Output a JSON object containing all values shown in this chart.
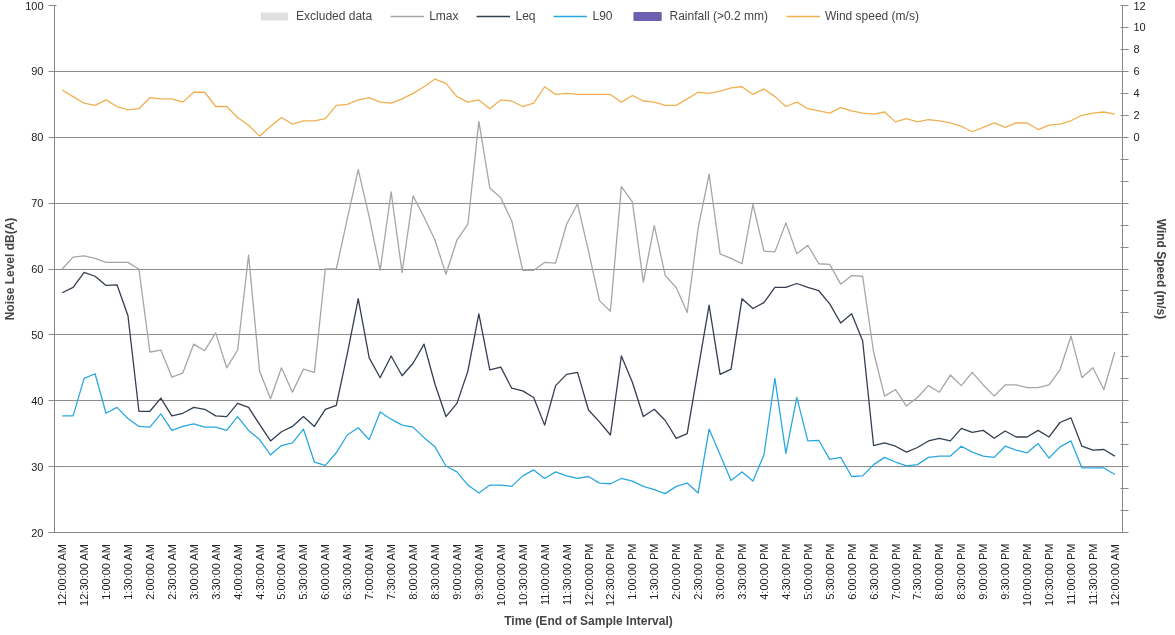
{
  "chart_data": {
    "type": "line",
    "xlabel": "Time (End of Sample Interval)",
    "ylabel": "Noise Level dB(A)",
    "y2label": "Wind Speed (m/s)",
    "categories": [
      "12:00:00 AM",
      null,
      "12:30:00 AM",
      null,
      "1:00:00 AM",
      null,
      "1:30:00 AM",
      null,
      "2:00:00 AM",
      null,
      "2:30:00 AM",
      null,
      "3:00:00 AM",
      null,
      "3:30:00 AM",
      null,
      "4:00:00 AM",
      null,
      "4:30:00 AM",
      null,
      "5:00:00 AM",
      null,
      "5:30:00 AM",
      null,
      "6:00:00 AM",
      null,
      "6:30:00 AM",
      null,
      "7:00:00 AM",
      null,
      "7:30:00 AM",
      null,
      "8:00:00 AM",
      null,
      "8:30:00 AM",
      null,
      "9:00:00 AM",
      null,
      "9:30:00 AM",
      null,
      "10:00:00 AM",
      null,
      "10:30:00 AM",
      null,
      "11:00:00 AM",
      null,
      "11:30:00 AM",
      null,
      "12:00:00 PM",
      null,
      "12:30:00 PM",
      null,
      "1:00:00 PM",
      null,
      "1:30:00 PM",
      null,
      "2:00:00 PM",
      null,
      "2:30:00 PM",
      null,
      "3:00:00 PM",
      null,
      "3:30:00 PM",
      null,
      "4:00:00 PM",
      null,
      "4:30:00 PM",
      null,
      "5:00:00 PM",
      null,
      "5:30:00 PM",
      null,
      "6:00:00 PM",
      null,
      "6:30:00 PM",
      null,
      "7:00:00 PM",
      null,
      "7:30:00 PM",
      null,
      "8:00:00 PM",
      null,
      "8:30:00 PM",
      null,
      "9:00:00 PM",
      null,
      "9:30:00 PM",
      null,
      "10:00:00 PM",
      null,
      "10:30:00 PM",
      null,
      "11:00:00 PM",
      null,
      "11:30:00 PM",
      null,
      "12:00:00 AM"
    ],
    "ylim": [
      20,
      100
    ],
    "yticks": [
      20,
      30,
      40,
      50,
      60,
      70,
      80,
      90,
      100
    ],
    "y2lim": [
      -36,
      12
    ],
    "y2ticks": [
      {
        "value": -36,
        "label": null
      },
      {
        "value": -34,
        "label": null
      },
      {
        "value": -32,
        "label": null
      },
      {
        "value": -30,
        "label": null
      },
      {
        "value": -28,
        "label": null
      },
      {
        "value": -26,
        "label": null
      },
      {
        "value": -24,
        "label": null
      },
      {
        "value": -22,
        "label": null
      },
      {
        "value": -20,
        "label": null
      },
      {
        "value": -18,
        "label": null
      },
      {
        "value": -16,
        "label": null
      },
      {
        "value": -14,
        "label": null
      },
      {
        "value": -12,
        "label": null
      },
      {
        "value": -10,
        "label": null
      },
      {
        "value": -8,
        "label": null
      },
      {
        "value": -6,
        "label": null
      },
      {
        "value": -4,
        "label": null
      },
      {
        "value": -2,
        "label": null
      },
      0,
      2,
      4,
      6,
      8,
      10,
      12
    ],
    "grid": "y",
    "legend": "top",
    "marker": "none",
    "line_style": "solid",
    "series": [
      {
        "name": "Excluded data",
        "type": "area",
        "color": "#e0e0e0",
        "values": [
          null,
          null,
          null,
          null,
          null,
          null,
          null,
          null,
          null,
          null,
          null,
          null,
          null,
          null,
          null,
          null,
          null,
          null,
          null,
          null,
          null,
          null,
          null,
          null,
          null,
          null,
          null,
          null,
          null,
          null,
          null,
          null,
          null,
          null,
          null,
          null,
          null,
          null,
          null,
          null,
          null,
          null,
          null,
          null,
          null,
          null,
          null,
          null,
          null,
          null,
          null,
          null,
          null,
          null,
          null,
          null,
          null,
          null,
          null,
          null,
          null,
          null,
          null,
          null,
          null,
          null,
          null,
          null,
          null,
          null,
          null,
          null,
          null,
          null,
          null,
          null,
          null,
          null,
          null,
          null,
          null,
          null,
          null,
          null,
          null,
          null,
          null,
          null,
          null,
          null,
          null,
          null,
          null,
          null,
          null,
          null,
          null
        ]
      },
      {
        "name": "Lmax",
        "color": "#a6a6a6",
        "values": [
          60,
          61.8,
          62,
          61.6,
          61,
          61,
          61,
          60,
          47.4,
          47.7,
          43.6,
          44.2,
          48.6,
          47.6,
          50.3,
          45,
          47.7,
          62.1,
          44.5,
          40.3,
          45,
          41.3,
          44.8,
          44.3,
          60,
          60,
          67.6,
          75.1,
          67.9,
          59.8,
          71.7,
          59.5,
          71.1,
          67.9,
          64.4,
          59.2,
          64.4,
          66.8,
          82.4,
          72.3,
          70.8,
          67.3,
          59.8,
          59.8,
          61,
          60.9,
          66.8,
          69.9,
          62.7,
          55.2,
          53.6,
          72.5,
          70.2,
          58,
          66.6,
          59,
          57.2,
          53.4,
          66.2,
          74.4,
          62.3,
          61.6,
          60.8,
          69.8,
          62.7,
          62.6,
          67,
          62.3,
          63.6,
          60.8,
          60.7,
          57.7,
          59,
          58.9,
          47.4,
          40.7,
          41.7,
          39.2,
          40.5,
          42.3,
          41.3,
          43.9,
          42.3,
          44.3,
          42.4,
          40.7,
          42.4,
          42.4,
          42,
          42,
          42.4,
          44.7,
          49.8,
          43.5,
          45,
          41.7,
          47.4
        ]
      },
      {
        "name": "Leq",
        "color": "#333f50",
        "values": [
          56.4,
          57.2,
          59.5,
          58.9,
          57.5,
          57.6,
          52.9,
          38.4,
          38.4,
          40.4,
          37.7,
          38.1,
          39,
          38.7,
          37.7,
          37.6,
          39.6,
          39,
          36.4,
          33.9,
          35.3,
          36.1,
          37.6,
          36.1,
          38.7,
          39.3,
          47.1,
          55.5,
          46.5,
          43.5,
          46.8,
          43.8,
          45.7,
          48.6,
          42.5,
          37.6,
          39.6,
          44.5,
          53.2,
          44.7,
          45.1,
          41.9,
          41.5,
          40.5,
          36.3,
          42.3,
          44,
          44.3,
          38.6,
          36.8,
          34.8,
          46.8,
          42.8,
          37.6,
          38.7,
          37,
          34.3,
          35,
          44.8,
          54.5,
          44,
          44.8,
          55.5,
          54,
          54.9,
          57.2,
          57.2,
          57.8,
          57.2,
          56.7,
          54.7,
          51.8,
          53.2,
          49.1,
          33.2,
          33.6,
          33.1,
          32.2,
          32.9,
          33.9,
          34.3,
          33.9,
          35.8,
          35.2,
          35.5,
          34.3,
          35.4,
          34.5,
          34.5,
          35.5,
          34.5,
          36.7,
          37.4,
          33.1,
          32.5,
          32.6,
          31.6
        ]
      },
      {
        "name": "L90",
        "color": "#29a8e0",
        "values": [
          37.7,
          37.7,
          43.4,
          44.1,
          38.1,
          39,
          37.3,
          36.1,
          36,
          38,
          35.5,
          36.1,
          36.5,
          36,
          36,
          35.5,
          37.6,
          35.5,
          34.1,
          31.8,
          33.2,
          33.6,
          35.7,
          30.7,
          30.2,
          32.1,
          34.8,
          35.9,
          34.1,
          38.3,
          37.2,
          36.3,
          36,
          34.4,
          33,
          30.1,
          29.2,
          27.2,
          26,
          27.2,
          27.2,
          27,
          28.6,
          29.5,
          28.2,
          29.2,
          28.6,
          28.2,
          28.5,
          27.5,
          27.4,
          28.2,
          27.8,
          27,
          26.5,
          25.9,
          27,
          27.5,
          26,
          35.7,
          31.8,
          27.9,
          29.2,
          27.8,
          31.8,
          43.4,
          32,
          40.5,
          33.9,
          34,
          31.1,
          31.4,
          28.5,
          28.6,
          30.3,
          31.4,
          30.7,
          30.1,
          30.3,
          31.4,
          31.6,
          31.6,
          33.1,
          32.2,
          31.6,
          31.4,
          33.1,
          32.5,
          32.1,
          33.5,
          31.3,
          33,
          33.9,
          29.8,
          29.8,
          29.8,
          28.8
        ]
      },
      {
        "name": "Rainfall (>0.2 mm)",
        "type": "bar",
        "color": "#6f5fb0",
        "values": [
          null,
          null,
          null,
          null,
          null,
          null,
          null,
          null,
          null,
          null,
          null,
          null,
          null,
          null,
          null,
          null,
          null,
          null,
          null,
          null,
          null,
          null,
          null,
          null,
          null,
          null,
          null,
          null,
          null,
          null,
          null,
          null,
          null,
          null,
          null,
          null,
          null,
          null,
          null,
          null,
          null,
          null,
          null,
          null,
          null,
          null,
          null,
          null,
          null,
          null,
          null,
          null,
          null,
          null,
          null,
          null,
          null,
          null,
          null,
          null,
          null,
          null,
          null,
          null,
          null,
          null,
          null,
          null,
          null,
          null,
          null,
          null,
          null,
          null,
          null,
          null,
          null,
          null,
          null,
          null,
          null,
          null,
          null,
          null,
          null,
          null,
          null,
          null,
          null,
          null,
          null,
          null,
          null,
          null,
          null,
          null,
          null
        ]
      },
      {
        "name": "Wind speed (m/s)",
        "axis": "y2",
        "color": "#f0b050",
        "values": [
          4.3,
          3.7,
          3.1,
          2.9,
          3.4,
          2.8,
          2.5,
          2.6,
          3.6,
          3.5,
          3.5,
          3.2,
          4.1,
          4.1,
          2.8,
          2.8,
          1.8,
          1.1,
          0.1,
          1.0,
          1.8,
          1.2,
          1.5,
          1.5,
          1.7,
          2.9,
          3.0,
          3.4,
          3.6,
          3.2,
          3.1,
          3.5,
          4.0,
          4.6,
          5.3,
          4.9,
          3.7,
          3.2,
          3.4,
          2.6,
          3.4,
          3.3,
          2.8,
          3.1,
          4.6,
          3.9,
          4.0,
          3.9,
          3.9,
          3.9,
          3.9,
          3.2,
          3.8,
          3.3,
          3.2,
          2.9,
          2.9,
          3.5,
          4.1,
          4.0,
          4.2,
          4.5,
          4.6,
          3.9,
          4.4,
          3.7,
          2.8,
          3.2,
          2.6,
          2.4,
          2.2,
          2.7,
          2.4,
          2.2,
          2.1,
          2.3,
          1.4,
          1.7,
          1.4,
          1.6,
          1.5,
          1.3,
          1.0,
          0.5,
          0.9,
          1.3,
          0.9,
          1.3,
          1.3,
          0.7,
          1.1,
          1.2,
          1.5,
          2.0,
          2.2,
          2.3,
          2.1
        ]
      }
    ]
  }
}
